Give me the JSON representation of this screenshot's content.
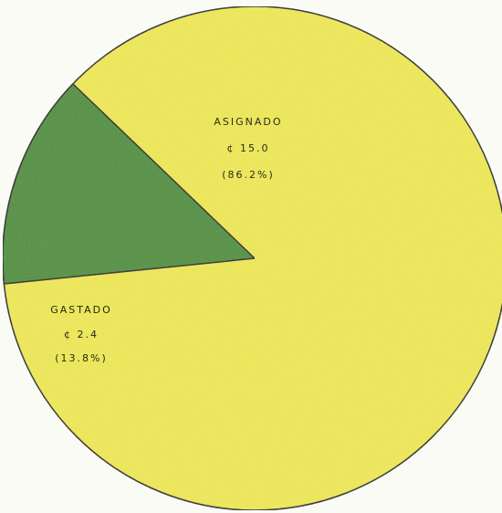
{
  "chart_data": {
    "type": "pie",
    "title": "",
    "slices": [
      {
        "label": "ASIGNADO",
        "value_text": "¢ 15.0",
        "value": 15.0,
        "percent_text": "(86.2%)",
        "percent": 86.2,
        "color": "#f0ea4f"
      },
      {
        "label": "GASTADO",
        "value_text": "¢ 2.4",
        "value": 2.4,
        "percent_text": "(13.8%)",
        "percent": 13.8,
        "color": "#4e9035"
      }
    ],
    "outline_color": "#1c1c14"
  }
}
